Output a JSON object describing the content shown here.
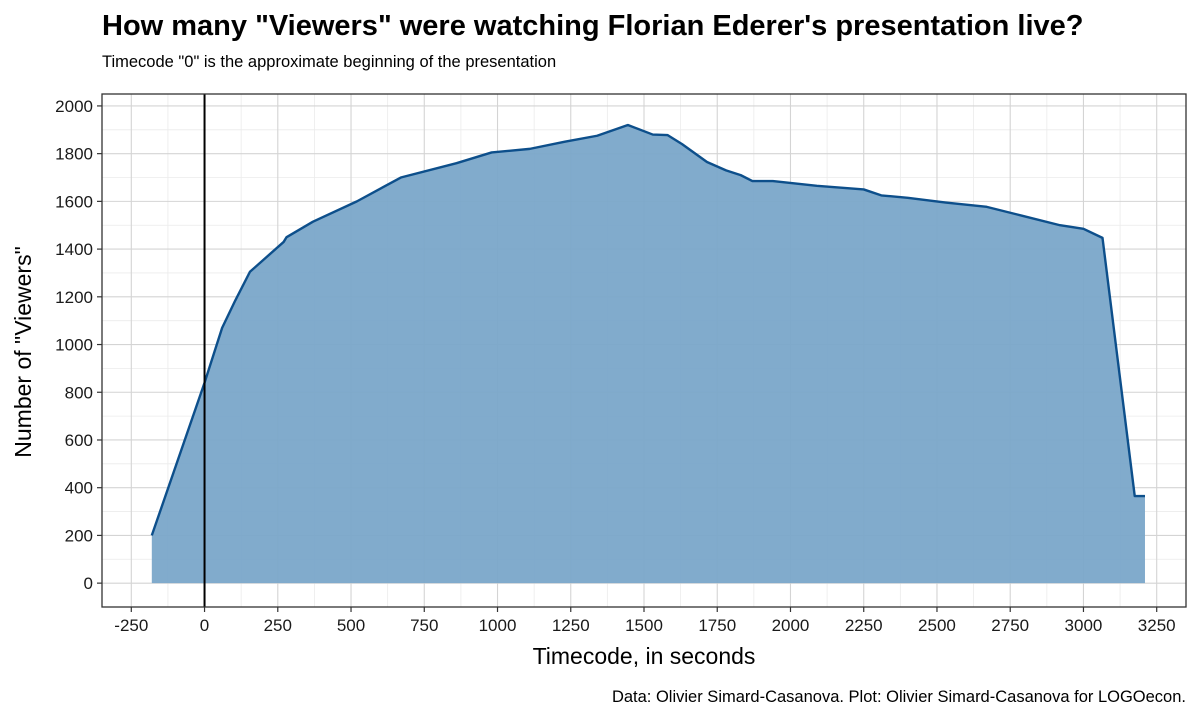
{
  "chart_data": {
    "type": "area",
    "title": "How many \"Viewers\" were watching Florian Ederer's presentation live?",
    "subtitle": "Timecode \"0\" is the approximate beginning of the presentation",
    "caption": "Data: Olivier Simard-Casanova. Plot: Olivier Simard-Casanova for LOGOecon.",
    "xlabel": "Timecode, in seconds",
    "ylabel": "Number of \"Viewers\"",
    "xlim": [
      -350,
      3350
    ],
    "ylim": [
      -100,
      2050
    ],
    "x_ticks": [
      -250,
      0,
      250,
      500,
      750,
      1000,
      1250,
      1500,
      1750,
      2000,
      2250,
      2500,
      2750,
      3000,
      3250
    ],
    "x_tick_labels": [
      "-250",
      "0",
      "250",
      "500",
      "750",
      "1000",
      "1250",
      "1500",
      "1750",
      "2000",
      "2250",
      "2500",
      "2750",
      "3000",
      "3250"
    ],
    "y_ticks": [
      0,
      200,
      400,
      600,
      800,
      1000,
      1200,
      1400,
      1600,
      1800,
      2000
    ],
    "y_tick_labels": [
      "0",
      "200",
      "400",
      "600",
      "800",
      "1000",
      "1200",
      "1400",
      "1600",
      "1800",
      "2000"
    ],
    "vline_x": 0,
    "grid": true,
    "colors": {
      "fill": "#7aa6c9",
      "line": "#0d4f8b",
      "vline": "#000000"
    },
    "x": [
      -180,
      0,
      60,
      105,
      155,
      270,
      280,
      370,
      520,
      670,
      860,
      980,
      1110,
      1230,
      1340,
      1445,
      1530,
      1580,
      1630,
      1715,
      1780,
      1830,
      1870,
      1940,
      2090,
      2250,
      2310,
      2400,
      2530,
      2670,
      2790,
      2920,
      3000,
      3065,
      3175,
      3210
    ],
    "y": [
      200,
      840,
      1070,
      1185,
      1305,
      1430,
      1450,
      1515,
      1600,
      1700,
      1760,
      1805,
      1820,
      1850,
      1875,
      1920,
      1880,
      1878,
      1840,
      1765,
      1730,
      1710,
      1685,
      1685,
      1665,
      1650,
      1625,
      1615,
      1595,
      1577,
      1540,
      1500,
      1485,
      1447,
      365,
      365
    ]
  }
}
